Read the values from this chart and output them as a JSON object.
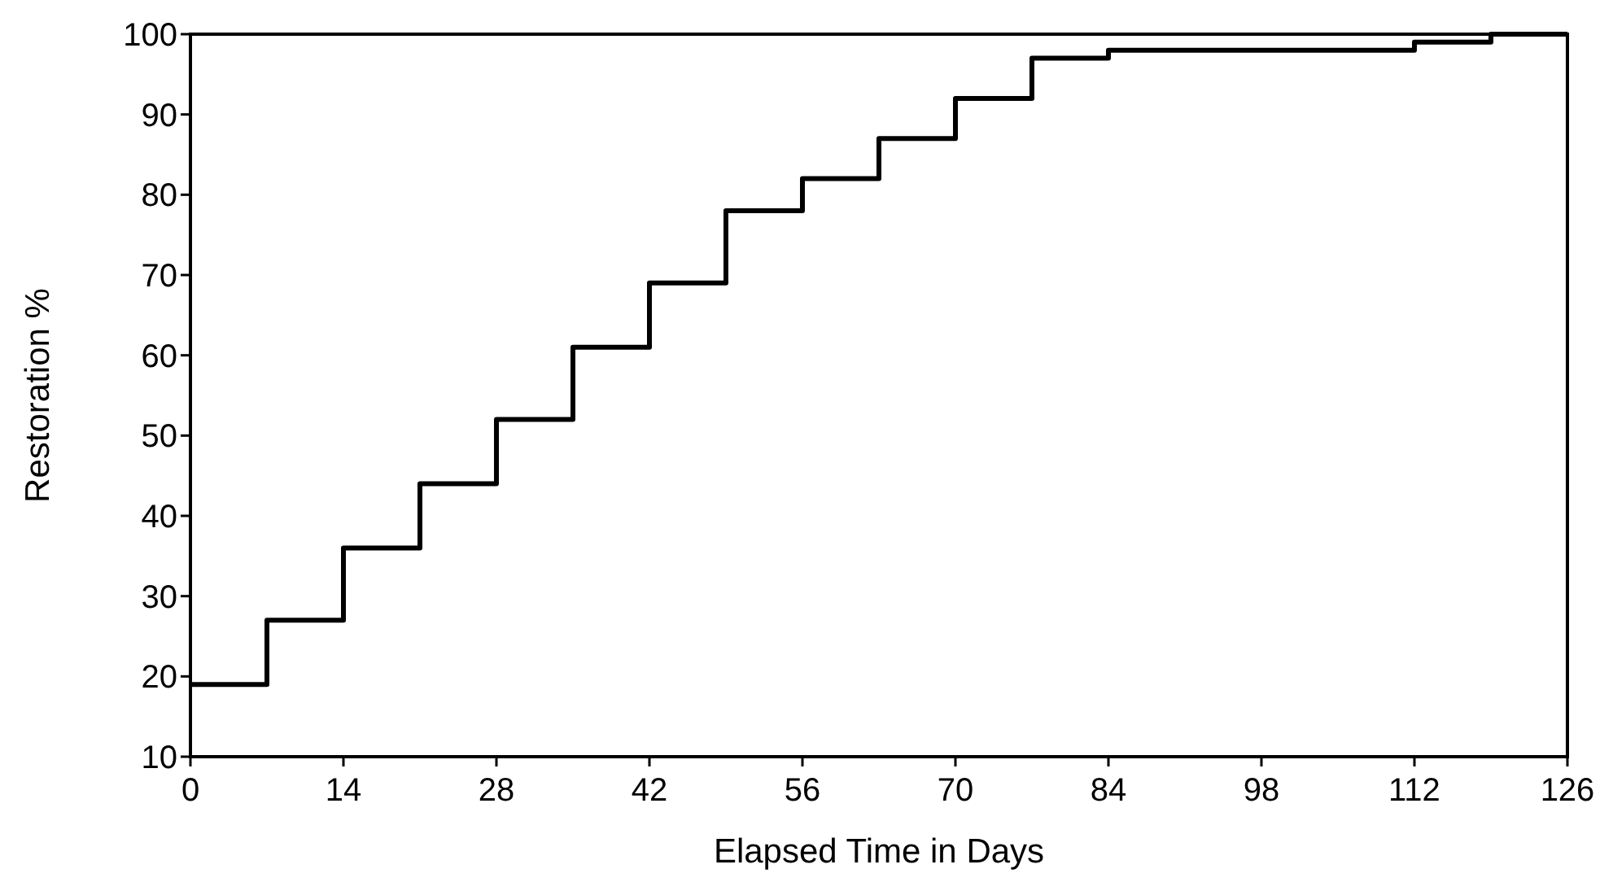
{
  "chart_data": {
    "type": "step",
    "xlabel": "Elapsed Time in Days",
    "ylabel": "Restoration %",
    "x": [
      0,
      7,
      14,
      21,
      28,
      35,
      42,
      49,
      56,
      63,
      70,
      77,
      84,
      112,
      119,
      126
    ],
    "values": [
      19,
      27,
      36,
      44,
      52,
      61,
      69,
      78,
      82,
      87,
      92,
      97,
      98,
      99,
      100,
      100
    ],
    "color": "#000000",
    "xlim": [
      0,
      126
    ],
    "xticks": [
      0,
      14,
      28,
      42,
      56,
      70,
      84,
      98,
      112,
      126
    ],
    "ylim": [
      10,
      100
    ],
    "yticks": [
      10,
      20,
      30,
      40,
      50,
      60,
      70,
      80,
      90,
      100
    ],
    "grid": false
  }
}
